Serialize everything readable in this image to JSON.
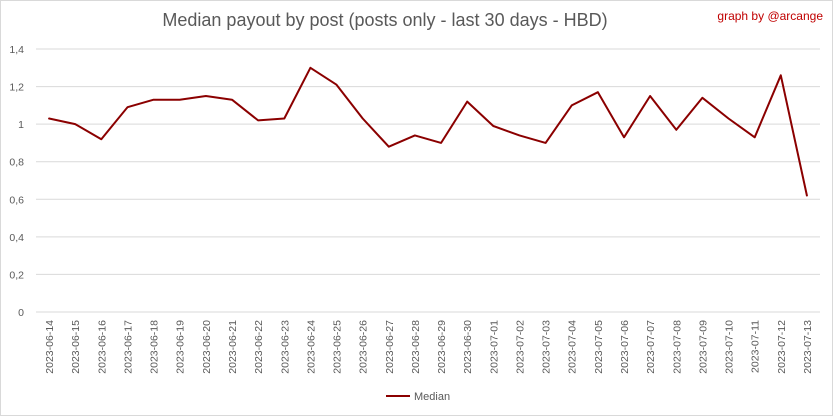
{
  "header": {
    "credit": "graph by @arcange"
  },
  "colors": {
    "series": "#8b0000",
    "grid": "#d9d9d9",
    "text": "#595959",
    "credit": "#c00000"
  },
  "chart_data": {
    "type": "line",
    "title": "Median payout by post (posts only - last 30 days - HBD)",
    "xlabel": "",
    "ylabel": "",
    "ylim": [
      0,
      1.4
    ],
    "yticks": [
      "0",
      "0,2",
      "0,4",
      "0,6",
      "0,8",
      "1",
      "1,2",
      "1,4"
    ],
    "grid": true,
    "legend_position": "bottom",
    "x": [
      "2023-06-14",
      "2023-06-15",
      "2023-06-16",
      "2023-06-17",
      "2023-06-18",
      "2023-06-19",
      "2023-06-20",
      "2023-06-21",
      "2023-06-22",
      "2023-06-23",
      "2023-06-24",
      "2023-06-25",
      "2023-06-26",
      "2023-06-27",
      "2023-06-28",
      "2023-06-29",
      "2023-06-30",
      "2023-07-01",
      "2023-07-02",
      "2023-07-03",
      "2023-07-04",
      "2023-07-05",
      "2023-07-06",
      "2023-07-07",
      "2023-07-08",
      "2023-07-09",
      "2023-07-10",
      "2023-07-11",
      "2023-07-12",
      "2023-07-13"
    ],
    "series": [
      {
        "name": "Median",
        "color": "#8b0000",
        "values": [
          1.03,
          1.0,
          0.92,
          1.09,
          1.13,
          1.13,
          1.15,
          1.13,
          1.02,
          1.03,
          1.3,
          1.21,
          1.03,
          0.88,
          0.94,
          0.9,
          1.12,
          0.99,
          0.94,
          0.9,
          1.1,
          1.17,
          0.93,
          1.15,
          0.97,
          1.14,
          1.03,
          0.93,
          1.26,
          0.62
        ]
      }
    ]
  }
}
